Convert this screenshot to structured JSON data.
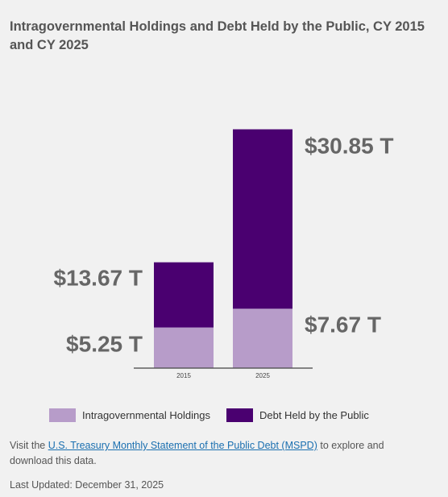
{
  "title": "Intragovernmental Holdings and Debt Held by the Public, CY 2015 and CY 2025",
  "colors": {
    "intragovernmental": "#b79cc9",
    "public": "#4a0070",
    "axis": "#444444",
    "label": "#666666"
  },
  "chart_data": {
    "type": "bar",
    "stacked": true,
    "categories": [
      "2015",
      "2025"
    ],
    "series": [
      {
        "name": "Intragovernmental Holdings",
        "values": [
          5.25,
          7.67
        ]
      },
      {
        "name": "Debt Held by the Public",
        "values": [
          13.67,
          30.85
        ]
      }
    ],
    "data_labels": {
      "2015": {
        "bottom": "$5.25 T",
        "top": "$13.67 T"
      },
      "2025": {
        "bottom": "$7.67 T",
        "top": "$30.85 T"
      }
    },
    "ylim": [
      0,
      38.5
    ],
    "legend_position": "bottom"
  },
  "legend": [
    {
      "label": "Intragovernmental Holdings",
      "color": "#b79cc9"
    },
    {
      "label": "Debt Held by the Public",
      "color": "#4a0070"
    }
  ],
  "note": {
    "prefix": "Visit the ",
    "link_text": "U.S. Treasury Monthly Statement of the Public Debt (MSPD)",
    "suffix": " to explore and download this data."
  },
  "updated": "Last Updated: December 31, 2025"
}
